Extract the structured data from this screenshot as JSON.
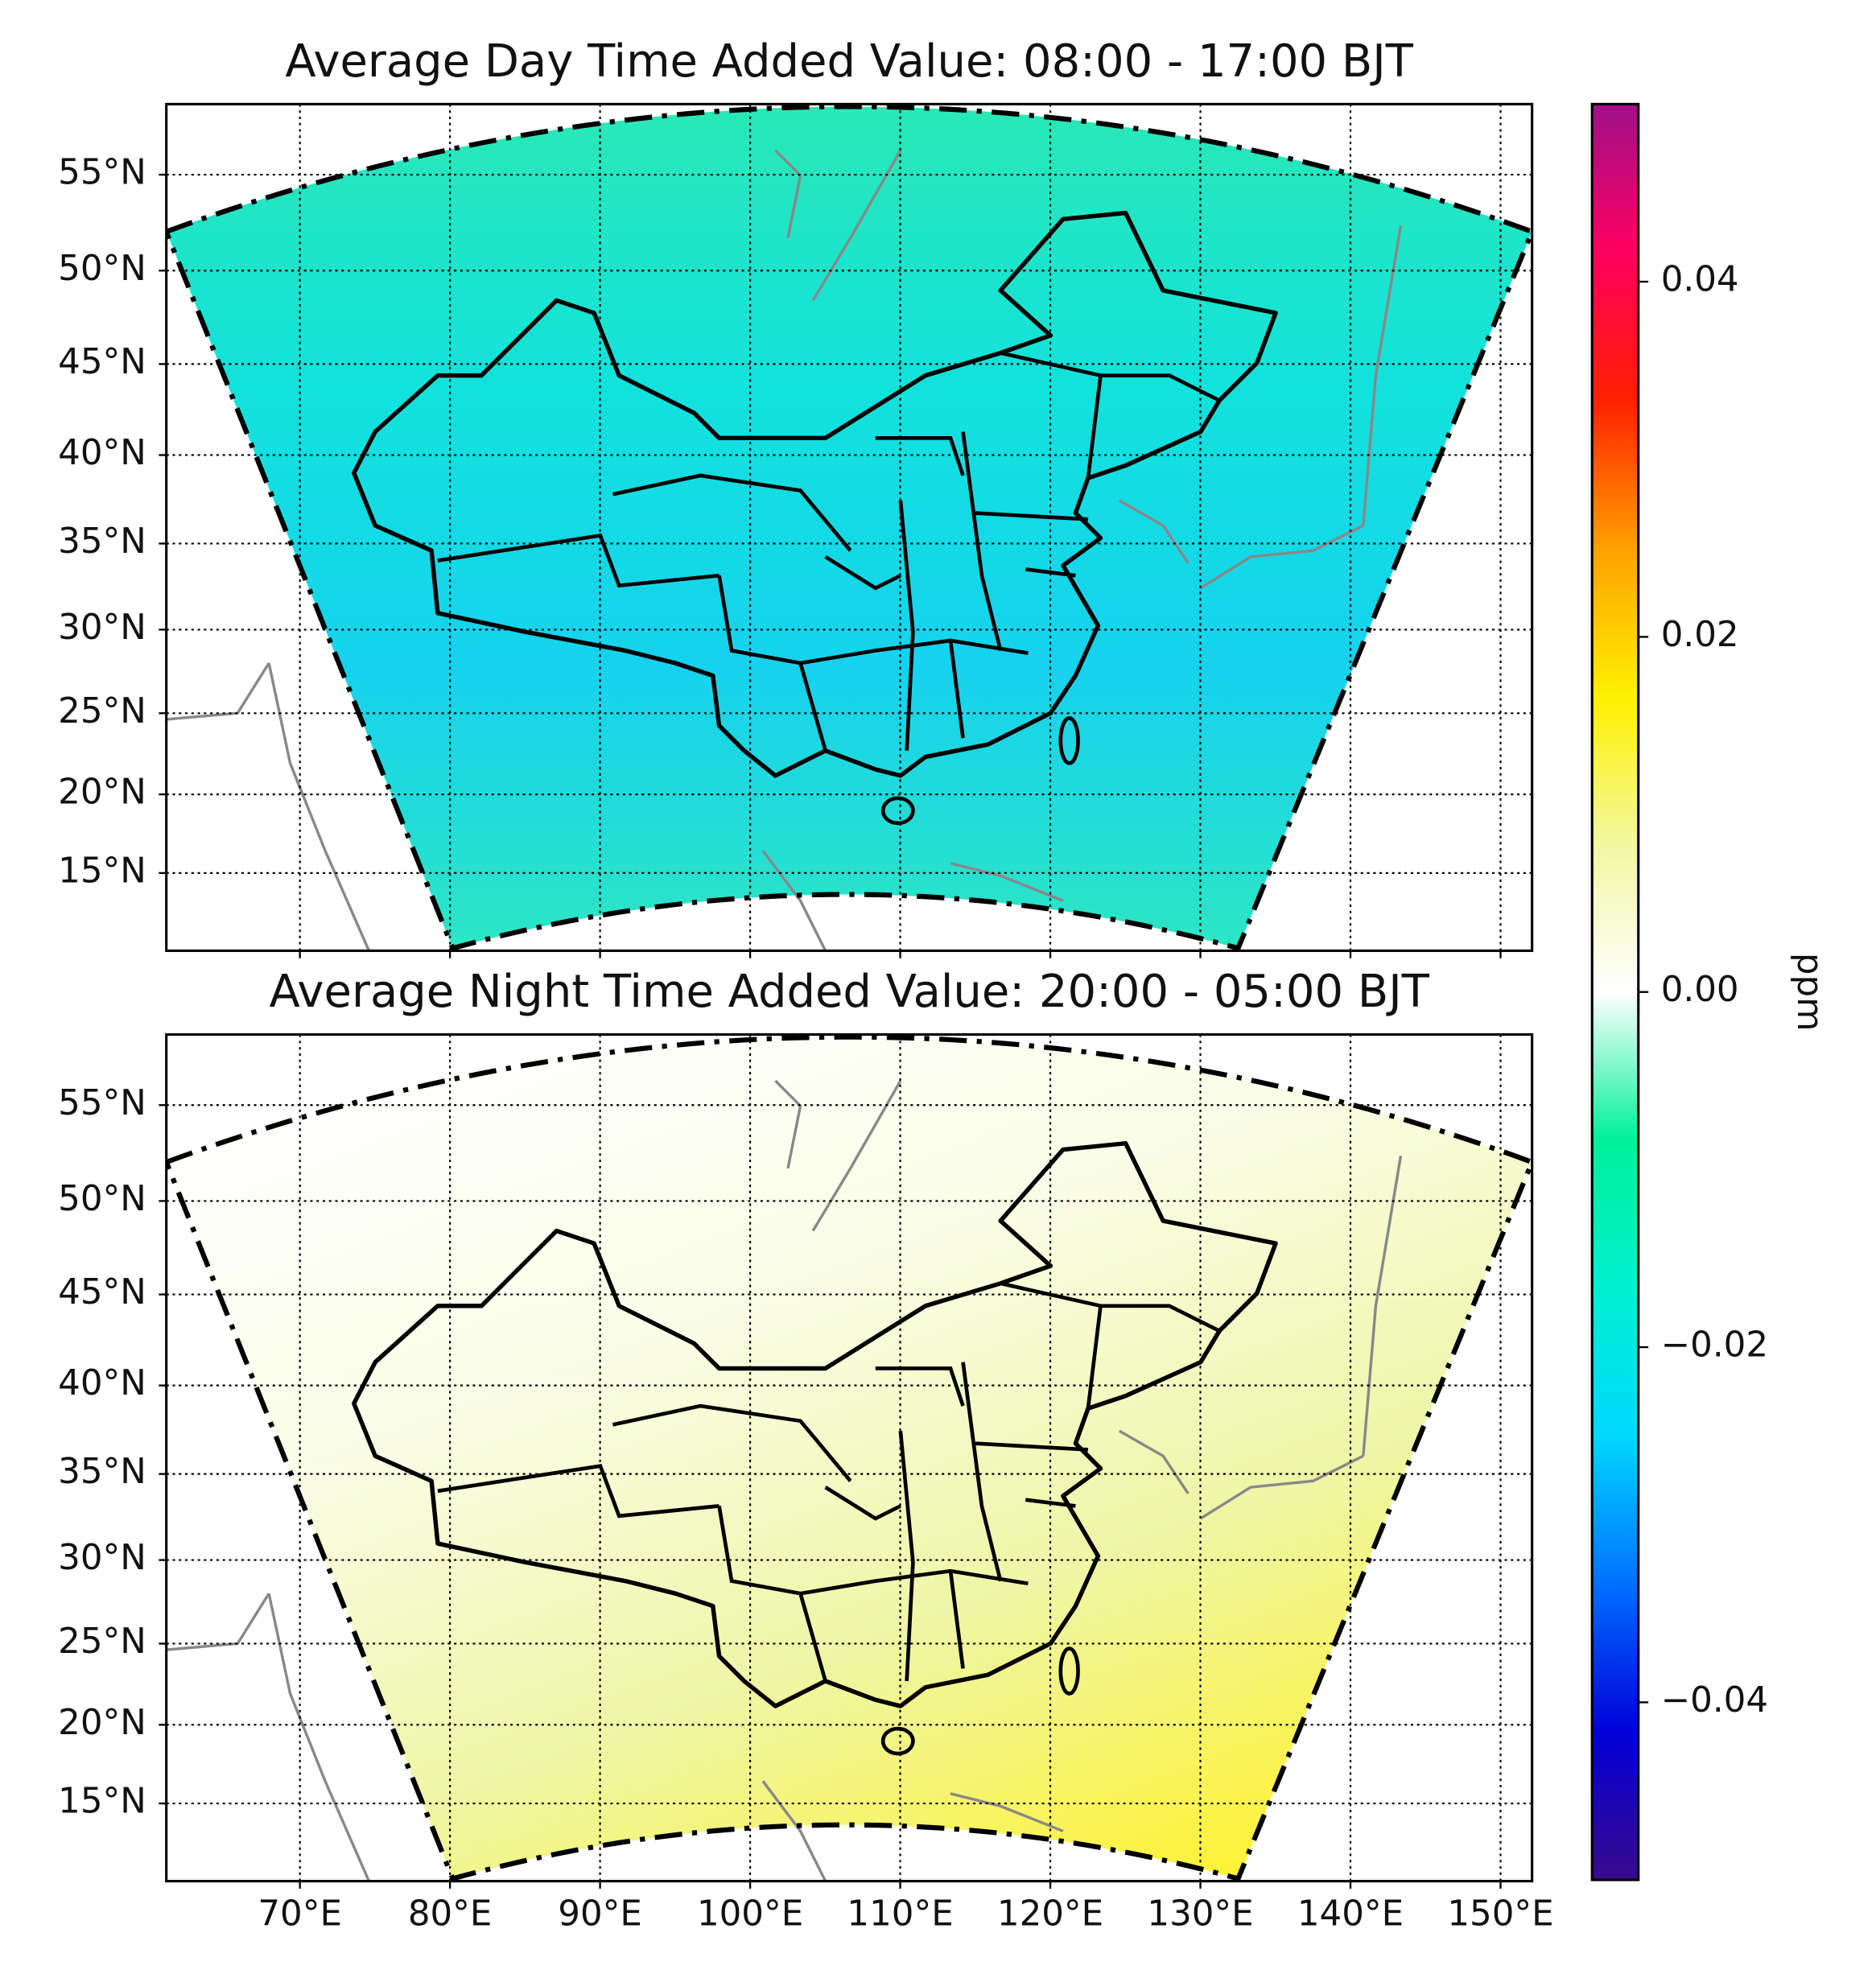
{
  "chart_data": [
    {
      "type": "map",
      "title": "Average Day Time Added Value: 08:00 - 17:00 BJT",
      "xlim": [
        61.1,
        152.1
      ],
      "ylim": [
        9.9,
        58.6
      ],
      "xticks": [
        70,
        80,
        90,
        100,
        110,
        120,
        130,
        140,
        150
      ],
      "yticks": [
        {
          "value": 15,
          "label": "15°N"
        },
        {
          "value": 20,
          "label": "20°N"
        },
        {
          "value": 25,
          "label": "25°N"
        },
        {
          "value": 30,
          "label": "30°N"
        },
        {
          "value": 35,
          "label": "35°N"
        },
        {
          "value": 40,
          "label": "40°N"
        },
        {
          "value": 45,
          "label": "45°N"
        },
        {
          "value": 50,
          "label": "50°N"
        },
        {
          "value": 55,
          "label": "55°N"
        }
      ],
      "field_colors": [
        "#2ae8b6",
        "#12e2dc",
        "#16d2ee",
        "#2ce6c4"
      ]
    },
    {
      "type": "map",
      "title": "Average Night Time Added Value: 20:00 - 05:00 BJT",
      "xlim": [
        61.1,
        152.1
      ],
      "ylim": [
        9.9,
        58.6
      ],
      "xticks": [
        {
          "value": 70,
          "label": "70°E"
        },
        {
          "value": 80,
          "label": "80°E"
        },
        {
          "value": 90,
          "label": "90°E"
        },
        {
          "value": 100,
          "label": "100°E"
        },
        {
          "value": 110,
          "label": "110°E"
        },
        {
          "value": 120,
          "label": "120°E"
        },
        {
          "value": 130,
          "label": "130°E"
        },
        {
          "value": 140,
          "label": "140°E"
        },
        {
          "value": 150,
          "label": "150°E"
        }
      ],
      "yticks": [
        {
          "value": 15,
          "label": "15°N"
        },
        {
          "value": 20,
          "label": "20°N"
        },
        {
          "value": 25,
          "label": "25°N"
        },
        {
          "value": 30,
          "label": "30°N"
        },
        {
          "value": 35,
          "label": "35°N"
        },
        {
          "value": 40,
          "label": "40°N"
        },
        {
          "value": 45,
          "label": "45°N"
        },
        {
          "value": 50,
          "label": "50°N"
        },
        {
          "value": 55,
          "label": "55°N"
        }
      ],
      "field_colors": [
        "#ffffff",
        "#fafde6",
        "#eef6a6",
        "#fff232"
      ]
    }
  ],
  "colorbar": {
    "label": "ppm",
    "lim": [
      -0.05,
      0.05
    ],
    "ticks": [
      {
        "value": -0.04,
        "label": "−0.04"
      },
      {
        "value": -0.02,
        "label": "−0.02"
      },
      {
        "value": 0,
        "label": "0.00"
      },
      0.02,
      0.04
    ],
    "colors": [
      "#3a0a8c",
      "#0000d8",
      "#0070ff",
      "#00d8ff",
      "#00f0d0",
      "#00f09a",
      "#ffffff",
      "#f2f8a0",
      "#fff000",
      "#ffa000",
      "#ff2000",
      "#ff0060",
      "#a0108a"
    ]
  }
}
